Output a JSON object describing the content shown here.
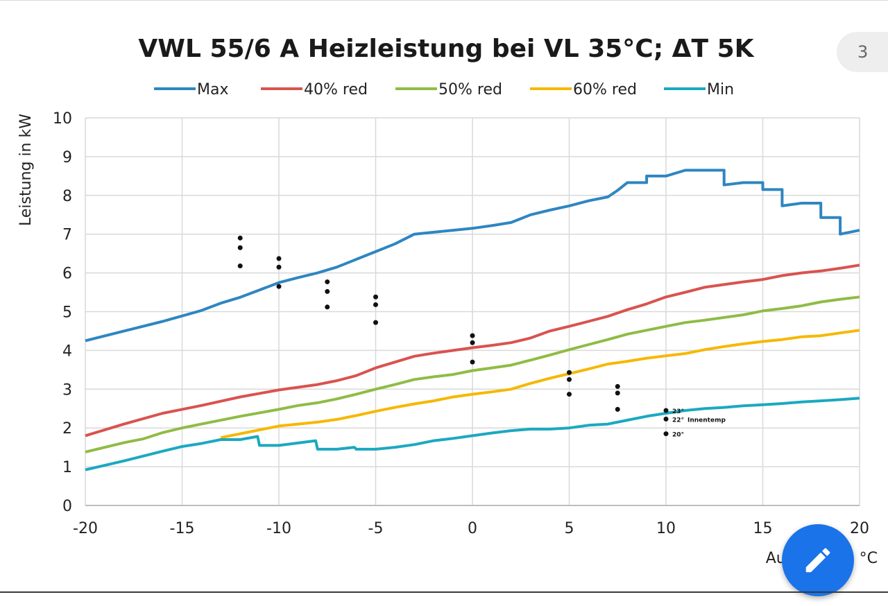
{
  "app": {
    "page_number": "3",
    "edit_icon": "pencil-icon"
  },
  "chart_data": {
    "type": "line",
    "title": "VWL 55/6 A Heizleistung bei VL 35°C; ΔT 5K",
    "xlabel": "Außentemp °C",
    "ylabel": "Leistung in kW",
    "xlim": [
      -20,
      20
    ],
    "ylim": [
      0,
      10
    ],
    "x_ticks": [
      -20,
      -15,
      -10,
      -5,
      0,
      5,
      10,
      15,
      20
    ],
    "y_ticks": [
      0,
      1,
      2,
      3,
      4,
      5,
      6,
      7,
      8,
      9,
      10
    ],
    "grid": true,
    "legend_position": "top",
    "series": [
      {
        "name": "Max",
        "color": "#2e86c1",
        "points": [
          [
            -20,
            4.25
          ],
          [
            -18,
            4.5
          ],
          [
            -16,
            4.75
          ],
          [
            -14,
            5.03
          ],
          [
            -13,
            5.22
          ],
          [
            -12,
            5.37
          ],
          [
            -11,
            5.56
          ],
          [
            -10,
            5.75
          ],
          [
            -9,
            5.88
          ],
          [
            -8,
            6.0
          ],
          [
            -7,
            6.15
          ],
          [
            -6,
            6.35
          ],
          [
            -5,
            6.55
          ],
          [
            -4,
            6.75
          ],
          [
            -3,
            7.0
          ],
          [
            -2,
            7.05
          ],
          [
            -1,
            7.1
          ],
          [
            0,
            7.15
          ],
          [
            1,
            7.22
          ],
          [
            2,
            7.3
          ],
          [
            3,
            7.5
          ],
          [
            4,
            7.62
          ],
          [
            5,
            7.73
          ],
          [
            6,
            7.86
          ],
          [
            7,
            7.96
          ],
          [
            7.5,
            8.13
          ],
          [
            8,
            8.33
          ],
          [
            9,
            8.33
          ],
          [
            9,
            8.5
          ],
          [
            10,
            8.5
          ],
          [
            11,
            8.65
          ],
          [
            13,
            8.65
          ],
          [
            13,
            8.27
          ],
          [
            14,
            8.33
          ],
          [
            15,
            8.33
          ],
          [
            15,
            8.15
          ],
          [
            16,
            8.15
          ],
          [
            16,
            7.73
          ],
          [
            17,
            7.8
          ],
          [
            18,
            7.8
          ],
          [
            18,
            7.43
          ],
          [
            19,
            7.43
          ],
          [
            19,
            7.0
          ],
          [
            20,
            7.1
          ]
        ]
      },
      {
        "name": "40% red",
        "color": "#d9534f",
        "points": [
          [
            -20,
            1.8
          ],
          [
            -18,
            2.1
          ],
          [
            -16,
            2.38
          ],
          [
            -14,
            2.58
          ],
          [
            -12,
            2.8
          ],
          [
            -10,
            2.98
          ],
          [
            -8,
            3.12
          ],
          [
            -7,
            3.22
          ],
          [
            -6,
            3.35
          ],
          [
            -5,
            3.55
          ],
          [
            -4,
            3.7
          ],
          [
            -3,
            3.85
          ],
          [
            -2,
            3.93
          ],
          [
            -1,
            4.0
          ],
          [
            0,
            4.07
          ],
          [
            1,
            4.13
          ],
          [
            2,
            4.2
          ],
          [
            3,
            4.32
          ],
          [
            4,
            4.5
          ],
          [
            5,
            4.62
          ],
          [
            6,
            4.75
          ],
          [
            7,
            4.88
          ],
          [
            8,
            5.05
          ],
          [
            9,
            5.2
          ],
          [
            10,
            5.38
          ],
          [
            11,
            5.5
          ],
          [
            12,
            5.63
          ],
          [
            13,
            5.7
          ],
          [
            14,
            5.77
          ],
          [
            15,
            5.83
          ],
          [
            16,
            5.93
          ],
          [
            17,
            6.0
          ],
          [
            18,
            6.05
          ],
          [
            19,
            6.12
          ],
          [
            20,
            6.2
          ]
        ]
      },
      {
        "name": "50% red",
        "color": "#8fbc45",
        "points": [
          [
            -20,
            1.38
          ],
          [
            -18,
            1.62
          ],
          [
            -17,
            1.72
          ],
          [
            -16,
            1.88
          ],
          [
            -15,
            2.0
          ],
          [
            -14,
            2.1
          ],
          [
            -12,
            2.3
          ],
          [
            -10,
            2.48
          ],
          [
            -9,
            2.58
          ],
          [
            -8,
            2.65
          ],
          [
            -7,
            2.75
          ],
          [
            -6,
            2.87
          ],
          [
            -5,
            3.0
          ],
          [
            -4,
            3.12
          ],
          [
            -3,
            3.25
          ],
          [
            -2,
            3.32
          ],
          [
            -1,
            3.38
          ],
          [
            0,
            3.48
          ],
          [
            1,
            3.55
          ],
          [
            2,
            3.62
          ],
          [
            3,
            3.75
          ],
          [
            4,
            3.88
          ],
          [
            5,
            4.02
          ],
          [
            6,
            4.15
          ],
          [
            7,
            4.28
          ],
          [
            8,
            4.42
          ],
          [
            9,
            4.52
          ],
          [
            10,
            4.62
          ],
          [
            11,
            4.72
          ],
          [
            12,
            4.78
          ],
          [
            13,
            4.85
          ],
          [
            14,
            4.92
          ],
          [
            15,
            5.02
          ],
          [
            16,
            5.08
          ],
          [
            17,
            5.15
          ],
          [
            18,
            5.25
          ],
          [
            19,
            5.32
          ],
          [
            20,
            5.38
          ]
        ]
      },
      {
        "name": "60% red",
        "color": "#f5b800",
        "points": [
          [
            -13,
            1.75
          ],
          [
            -12,
            1.85
          ],
          [
            -11,
            1.95
          ],
          [
            -10,
            2.05
          ],
          [
            -9,
            2.1
          ],
          [
            -8,
            2.15
          ],
          [
            -7,
            2.22
          ],
          [
            -6,
            2.32
          ],
          [
            -5,
            2.43
          ],
          [
            -4,
            2.53
          ],
          [
            -3,
            2.62
          ],
          [
            -2,
            2.7
          ],
          [
            -1,
            2.8
          ],
          [
            0,
            2.87
          ],
          [
            1,
            2.93
          ],
          [
            2,
            3.0
          ],
          [
            3,
            3.15
          ],
          [
            4,
            3.28
          ],
          [
            5,
            3.4
          ],
          [
            6,
            3.52
          ],
          [
            7,
            3.65
          ],
          [
            8,
            3.72
          ],
          [
            9,
            3.8
          ],
          [
            10,
            3.86
          ],
          [
            11,
            3.92
          ],
          [
            12,
            4.02
          ],
          [
            13,
            4.1
          ],
          [
            14,
            4.17
          ],
          [
            15,
            4.23
          ],
          [
            16,
            4.28
          ],
          [
            17,
            4.35
          ],
          [
            18,
            4.38
          ],
          [
            19,
            4.45
          ],
          [
            20,
            4.52
          ]
        ]
      },
      {
        "name": "Min",
        "color": "#1ba9c0",
        "points": [
          [
            -20,
            0.92
          ],
          [
            -18,
            1.15
          ],
          [
            -16,
            1.4
          ],
          [
            -15,
            1.52
          ],
          [
            -14,
            1.6
          ],
          [
            -13,
            1.7
          ],
          [
            -12,
            1.7
          ],
          [
            -11.1,
            1.78
          ],
          [
            -11,
            1.55
          ],
          [
            -10,
            1.55
          ],
          [
            -8.1,
            1.67
          ],
          [
            -8,
            1.45
          ],
          [
            -7,
            1.45
          ],
          [
            -6.1,
            1.5
          ],
          [
            -6,
            1.45
          ],
          [
            -5,
            1.45
          ],
          [
            -4,
            1.5
          ],
          [
            -3,
            1.57
          ],
          [
            -2,
            1.67
          ],
          [
            -1,
            1.73
          ],
          [
            0,
            1.8
          ],
          [
            1,
            1.87
          ],
          [
            2,
            1.93
          ],
          [
            3,
            1.97
          ],
          [
            4,
            1.97
          ],
          [
            5,
            2.0
          ],
          [
            6,
            2.07
          ],
          [
            7,
            2.1
          ],
          [
            8,
            2.2
          ],
          [
            9,
            2.3
          ],
          [
            10,
            2.38
          ],
          [
            11,
            2.45
          ],
          [
            12,
            2.5
          ],
          [
            13,
            2.53
          ],
          [
            14,
            2.57
          ],
          [
            15,
            2.6
          ],
          [
            16,
            2.63
          ],
          [
            17,
            2.67
          ],
          [
            18,
            2.7
          ],
          [
            19,
            2.73
          ],
          [
            20,
            2.77
          ]
        ]
      }
    ],
    "markers": [
      {
        "x": -12,
        "y": 6.9
      },
      {
        "x": -12,
        "y": 6.65
      },
      {
        "x": -12,
        "y": 6.18
      },
      {
        "x": -10,
        "y": 6.37
      },
      {
        "x": -10,
        "y": 6.15
      },
      {
        "x": -10,
        "y": 5.65
      },
      {
        "x": -7.5,
        "y": 5.77
      },
      {
        "x": -7.5,
        "y": 5.52
      },
      {
        "x": -7.5,
        "y": 5.12
      },
      {
        "x": -5,
        "y": 5.38
      },
      {
        "x": -5,
        "y": 5.18
      },
      {
        "x": -5,
        "y": 4.72
      },
      {
        "x": 0,
        "y": 4.38
      },
      {
        "x": 0,
        "y": 4.2
      },
      {
        "x": 0,
        "y": 3.7
      },
      {
        "x": 5,
        "y": 3.43
      },
      {
        "x": 5,
        "y": 3.25
      },
      {
        "x": 5,
        "y": 2.87
      },
      {
        "x": 7.5,
        "y": 3.07
      },
      {
        "x": 7.5,
        "y": 2.9
      },
      {
        "x": 7.5,
        "y": 2.48
      },
      {
        "x": 10,
        "y": 2.45
      },
      {
        "x": 10,
        "y": 2.23
      },
      {
        "x": 10,
        "y": 1.85
      }
    ],
    "annotations": [
      {
        "text": "23°",
        "x": 10,
        "y": 2.45
      },
      {
        "text": "22°",
        "x": 10,
        "y": 2.23
      },
      {
        "text": "Innentemp",
        "x": 10,
        "y": 2.23
      },
      {
        "text": "20°",
        "x": 10,
        "y": 1.85
      }
    ]
  }
}
